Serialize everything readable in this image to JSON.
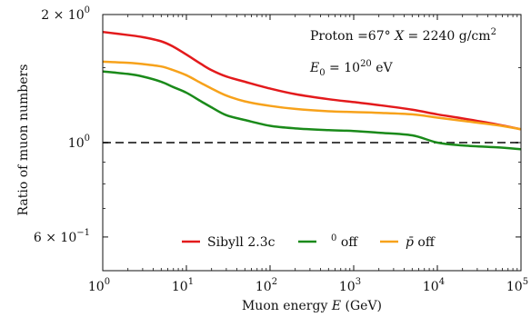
{
  "chart_data": {
    "type": "line",
    "xscale": "log",
    "yscale": "log",
    "xlim": [
      1,
      100000
    ],
    "ylim": [
      0.5,
      2.0
    ],
    "xlabel_parts": [
      "Muon energy ",
      "E",
      "   (GeV)"
    ],
    "ylabel": "Ratio of muon numbers",
    "xtick_values": [
      1,
      10,
      100,
      1000,
      10000,
      100000
    ],
    "xtick_labels": [
      {
        "base": "10",
        "exp": "0"
      },
      {
        "base": "10",
        "exp": "1"
      },
      {
        "base": "10",
        "exp": "2"
      },
      {
        "base": "10",
        "exp": "3"
      },
      {
        "base": "10",
        "exp": "4"
      },
      {
        "base": "10",
        "exp": "5"
      }
    ],
    "ytick_values": [
      2.0,
      1.0,
      0.6
    ],
    "ytick_labels": [
      {
        "text": "2 × 10",
        "exp": "0"
      },
      {
        "text": "10",
        "exp": "0"
      },
      {
        "text": "6 × 10",
        "exp": "−1"
      }
    ],
    "reference_line": {
      "y": 1.0,
      "style": "dashed",
      "color": "#444444"
    },
    "annotations": {
      "line1": {
        "a": "Proton",
        "b": "  =67° ",
        "c": "X",
        "d": " = 2240 g/cm",
        "sup": "2"
      },
      "line2": {
        "a": "E",
        "sub": "0",
        "b": " = 10",
        "sup": "20",
        "c": " eV"
      }
    },
    "legend": {
      "placement": "bottom-center"
    },
    "series": [
      {
        "name": "Sibyll 2.3c",
        "color": "#e31a1c",
        "x": [
          1,
          2,
          3,
          5,
          7,
          10,
          15,
          20,
          30,
          50,
          100,
          200,
          500,
          1000,
          2000,
          5000,
          10000,
          20000,
          50000,
          100000
        ],
        "y": [
          1.82,
          1.79,
          1.77,
          1.73,
          1.68,
          1.61,
          1.53,
          1.48,
          1.43,
          1.39,
          1.34,
          1.3,
          1.265,
          1.245,
          1.225,
          1.195,
          1.165,
          1.14,
          1.105,
          1.075
        ]
      },
      {
        "name": "π⁰ off",
        "color": "#1a8a1a",
        "x": [
          1,
          2,
          3,
          5,
          7,
          10,
          15,
          20,
          30,
          50,
          100,
          200,
          500,
          1000,
          2000,
          5000,
          10000,
          20000,
          50000,
          100000
        ],
        "y": [
          1.47,
          1.45,
          1.43,
          1.39,
          1.35,
          1.31,
          1.25,
          1.21,
          1.16,
          1.13,
          1.095,
          1.08,
          1.07,
          1.065,
          1.055,
          1.04,
          1.0,
          0.985,
          0.975,
          0.965
        ]
      },
      {
        "name": "p̄ off",
        "color": "#f7a21b",
        "x": [
          1,
          2,
          3,
          5,
          7,
          10,
          15,
          20,
          30,
          50,
          100,
          200,
          500,
          1000,
          2000,
          5000,
          10000,
          20000,
          50000,
          100000
        ],
        "y": [
          1.55,
          1.54,
          1.53,
          1.51,
          1.48,
          1.44,
          1.38,
          1.34,
          1.29,
          1.25,
          1.22,
          1.2,
          1.185,
          1.18,
          1.175,
          1.165,
          1.145,
          1.125,
          1.1,
          1.075
        ]
      }
    ]
  },
  "legend_labels": {
    "s1": "Sibyll 2.3c",
    "s2_sup": "0",
    "s2_text": " off",
    "s3_text": " off",
    "s3_symbol": "p̄"
  }
}
